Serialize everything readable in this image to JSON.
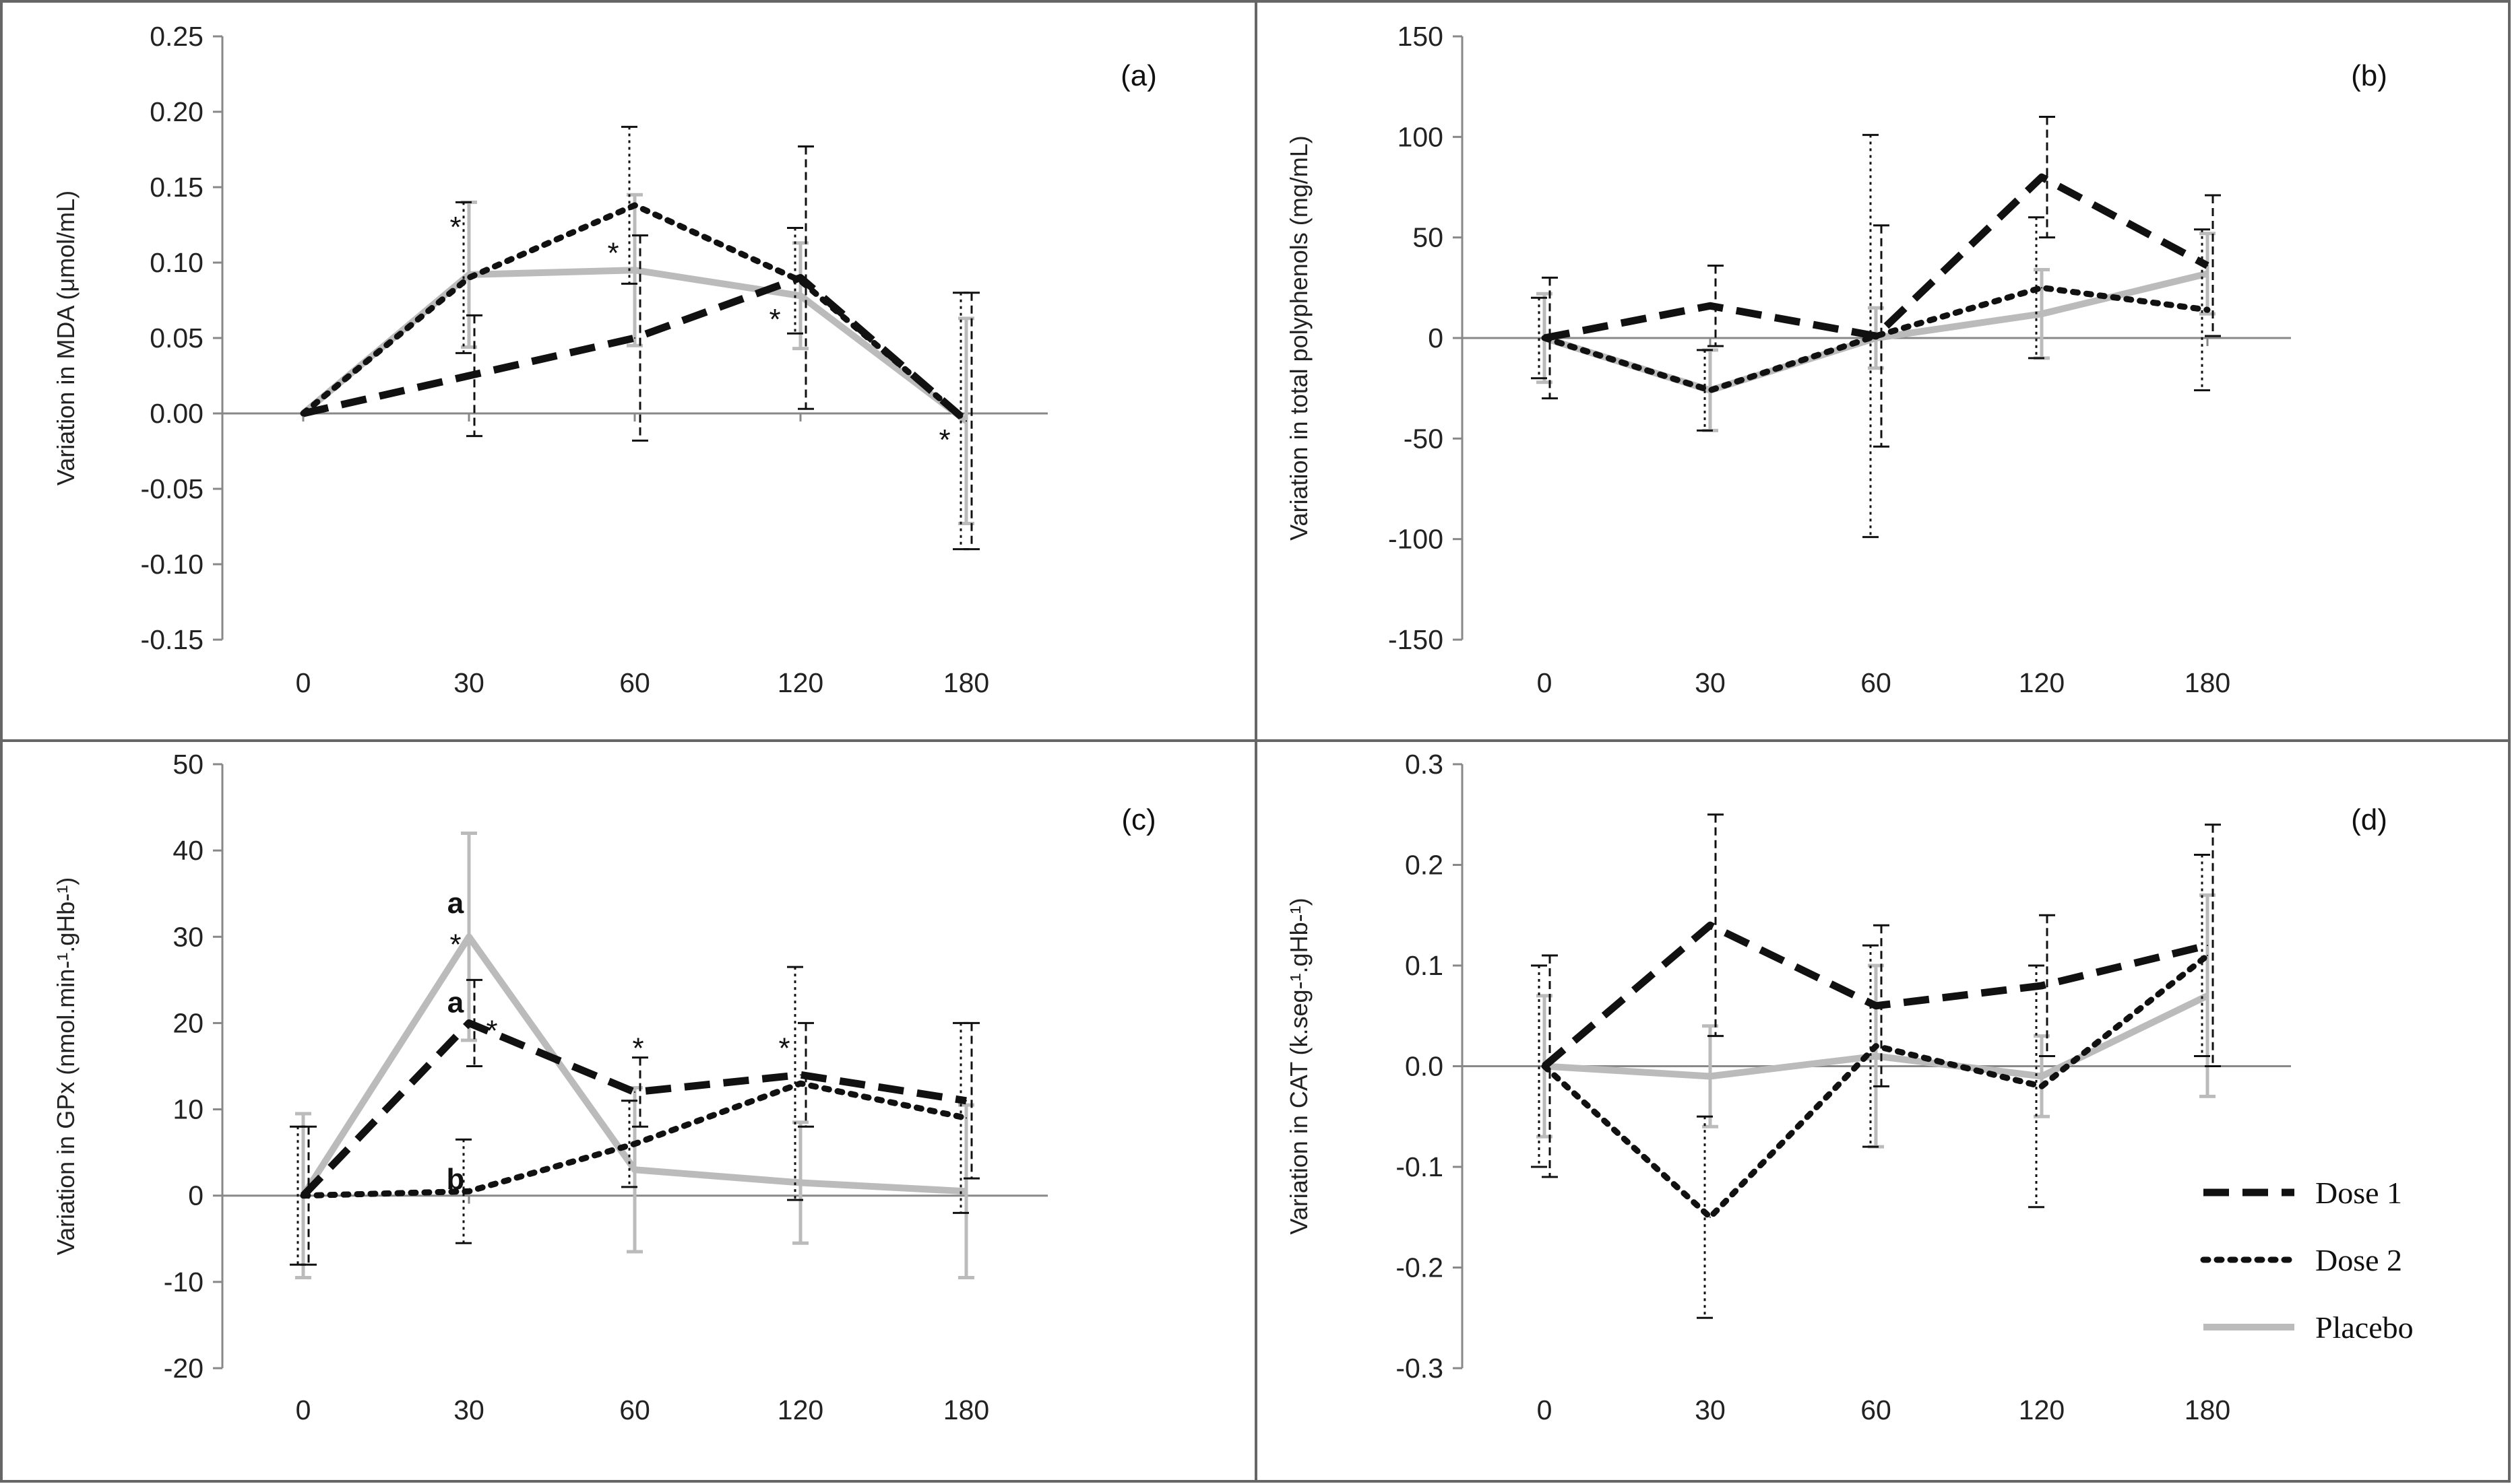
{
  "figure": {
    "series_styles": {
      "dose1": {
        "color": "#111111",
        "dash": "38,20",
        "width": 11
      },
      "dose2": {
        "color": "#111111",
        "dash": "7,13",
        "width": 9
      },
      "placebo": {
        "color": "#bbbbbb",
        "dash": "",
        "width": 10
      }
    }
  },
  "legend": {
    "entries": [
      {
        "key": "dose1",
        "label": "Dose 1"
      },
      {
        "key": "dose2",
        "label": "Dose 2"
      },
      {
        "key": "placebo",
        "label": "Placebo"
      }
    ]
  },
  "chart_data": [
    {
      "type": "line",
      "panel": "(a)",
      "ylabel": "Variation in  MDA (μmol/mL)",
      "categories": [
        "0",
        "30",
        "60",
        "120",
        "180"
      ],
      "ylim": [
        -0.15,
        0.25
      ],
      "ytick_step": 0.05,
      "ytick_decimals": 2,
      "series": [
        {
          "key": "dose1",
          "name": "Dose 1",
          "values": [
            0.0,
            0.025,
            0.05,
            0.09,
            -0.005
          ],
          "errors": [
            0.0,
            0.04,
            0.068,
            0.087,
            0.085
          ]
        },
        {
          "key": "dose2",
          "name": "Dose 2",
          "values": [
            0.0,
            0.09,
            0.138,
            0.088,
            -0.005
          ],
          "errors": [
            0.0,
            0.05,
            0.052,
            0.035,
            0.085
          ]
        },
        {
          "key": "placebo",
          "name": "Placebo",
          "values": [
            0.0,
            0.092,
            0.095,
            0.078,
            -0.005
          ],
          "errors": [
            0.0,
            0.048,
            0.05,
            0.035,
            0.068
          ]
        }
      ],
      "annotations": [
        {
          "text": "*",
          "x": "30",
          "y": 0.124,
          "dx": -20,
          "bold": false
        },
        {
          "text": "*",
          "x": "60",
          "y": 0.107,
          "dx": -32,
          "bold": false
        },
        {
          "text": "*",
          "x": "120",
          "y": 0.063,
          "dx": -38,
          "bold": false
        },
        {
          "text": "*",
          "x": "180",
          "y": -0.017,
          "dx": -32,
          "bold": false
        }
      ]
    },
    {
      "type": "line",
      "panel": "(b)",
      "ylabel": "Variation in total polyphenols (mg/mL)",
      "categories": [
        "0",
        "30",
        "60",
        "120",
        "180"
      ],
      "ylim": [
        -150,
        150
      ],
      "ytick_step": 50,
      "ytick_decimals": 0,
      "series": [
        {
          "key": "dose1",
          "name": "Dose 1",
          "values": [
            0,
            16,
            1,
            80,
            36
          ],
          "errors": [
            30,
            20,
            55,
            30,
            35
          ]
        },
        {
          "key": "dose2",
          "name": "Dose 2",
          "values": [
            0,
            -26,
            1,
            25,
            14
          ],
          "errors": [
            20,
            20,
            100,
            35,
            40
          ]
        },
        {
          "key": "placebo",
          "name": "Placebo",
          "values": [
            0,
            -26,
            0,
            12,
            32
          ],
          "errors": [
            22,
            20,
            15,
            22,
            20
          ]
        }
      ],
      "annotations": []
    },
    {
      "type": "line",
      "panel": "(c)",
      "ylabel": "Variation in GPx (nmol.min-¹.gHb-¹)",
      "categories": [
        "0",
        "30",
        "60",
        "120",
        "180"
      ],
      "ylim": [
        -20,
        50
      ],
      "ytick_step": 10,
      "ytick_decimals": 0,
      "series": [
        {
          "key": "dose1",
          "name": "Dose 1",
          "values": [
            0,
            20,
            12,
            14,
            11
          ],
          "errors": [
            8,
            5,
            4,
            6,
            9
          ]
        },
        {
          "key": "dose2",
          "name": "Dose 2",
          "values": [
            0,
            0.5,
            6,
            13,
            9
          ],
          "errors": [
            8,
            6,
            5,
            13.5,
            11
          ]
        },
        {
          "key": "placebo",
          "name": "Placebo",
          "values": [
            0,
            30,
            3,
            1.5,
            0.5
          ],
          "errors": [
            9.5,
            12,
            9.5,
            7,
            10
          ]
        }
      ],
      "annotations": [
        {
          "text": "a",
          "x": "30",
          "y": 34,
          "dx": -20,
          "bold": true
        },
        {
          "text": "*",
          "x": "30",
          "y": 29.2,
          "dx": -20,
          "bold": false
        },
        {
          "text": "a",
          "x": "30",
          "y": 22.5,
          "dx": -20,
          "bold": true
        },
        {
          "text": "*",
          "x": "30",
          "y": 19.2,
          "dx": 34,
          "bold": false
        },
        {
          "text": "*",
          "x": "60",
          "y": 17.2,
          "dx": 5,
          "bold": false
        },
        {
          "text": "*",
          "x": "120",
          "y": 17.2,
          "dx": -24,
          "bold": false
        },
        {
          "text": "b",
          "x": "30",
          "y": 2,
          "dx": -20,
          "bold": true
        }
      ]
    },
    {
      "type": "line",
      "panel": "(d)",
      "ylabel": "Variation in  CAT (k.seg-¹.gHb-¹)",
      "categories": [
        "0",
        "30",
        "60",
        "120",
        "180"
      ],
      "ylim": [
        -0.3,
        0.3
      ],
      "ytick_step": 0.1,
      "ytick_decimals": 1,
      "series": [
        {
          "key": "dose1",
          "name": "Dose 1",
          "values": [
            0,
            0.14,
            0.06,
            0.08,
            0.12
          ],
          "errors": [
            0.11,
            0.11,
            0.08,
            0.07,
            0.12
          ]
        },
        {
          "key": "dose2",
          "name": "Dose 2",
          "values": [
            0,
            -0.15,
            0.02,
            -0.02,
            0.11
          ],
          "errors": [
            0.1,
            0.1,
            0.1,
            0.12,
            0.1
          ]
        },
        {
          "key": "placebo",
          "name": "Placebo",
          "values": [
            0,
            -0.01,
            0.01,
            -0.01,
            0.07
          ],
          "errors": [
            0.07,
            0.05,
            0.09,
            0.04,
            0.1
          ]
        }
      ],
      "annotations": []
    }
  ]
}
